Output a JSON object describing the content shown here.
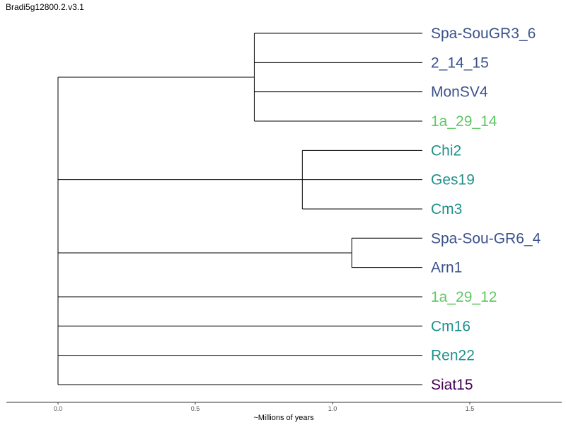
{
  "chart_data": {
    "type": "dendrogram",
    "title": "Bradi5g12800.2.v3.1",
    "xlabel": "~Millions of years",
    "xlim": [
      0.0,
      1.83
    ],
    "ticks": [
      {
        "value": 0.0,
        "label": "0.0"
      },
      {
        "value": 0.5,
        "label": "0.5"
      },
      {
        "value": 1.0,
        "label": "1.0"
      },
      {
        "value": 1.5,
        "label": "1.5"
      }
    ],
    "leaves": [
      {
        "name": "Spa-SouGR3_6",
        "color": "#3b528b"
      },
      {
        "name": "2_14_15",
        "color": "#3b528b"
      },
      {
        "name": "MonSV4",
        "color": "#3b528b"
      },
      {
        "name": "1a_29_14",
        "color": "#5ec962"
      },
      {
        "name": "Chi2",
        "color": "#21918c"
      },
      {
        "name": "Ges19",
        "color": "#21918c"
      },
      {
        "name": "Cm3",
        "color": "#21918c"
      },
      {
        "name": "Spa-Sou-GR6_4",
        "color": "#3b528b"
      },
      {
        "name": "Arn1",
        "color": "#3b528b"
      },
      {
        "name": "1a_29_12",
        "color": "#5ec962"
      },
      {
        "name": "Cm16",
        "color": "#21918c"
      },
      {
        "name": "Ren22",
        "color": "#21918c"
      },
      {
        "name": "Siat15",
        "color": "#440154"
      }
    ],
    "tree": {
      "age": 0.0,
      "children": [
        {
          "age": 0.0,
          "children": [
            {
              "age": 0.715,
              "children": [
                {
                  "leaf": 0
                },
                {
                  "leaf": 1
                },
                {
                  "leaf": 2
                },
                {
                  "leaf": 3
                }
              ]
            },
            {
              "age": 0.89,
              "children": [
                {
                  "leaf": 4
                },
                {
                  "leaf": 5
                },
                {
                  "leaf": 6
                }
              ]
            }
          ]
        },
        {
          "age": 0.0,
          "children": [
            {
              "age": 1.07,
              "children": [
                {
                  "leaf": 7
                },
                {
                  "leaf": 8
                }
              ]
            },
            {
              "leaf": 9
            },
            {
              "leaf": 10
            },
            {
              "leaf": 11
            },
            {
              "leaf": 12
            }
          ]
        }
      ]
    }
  }
}
